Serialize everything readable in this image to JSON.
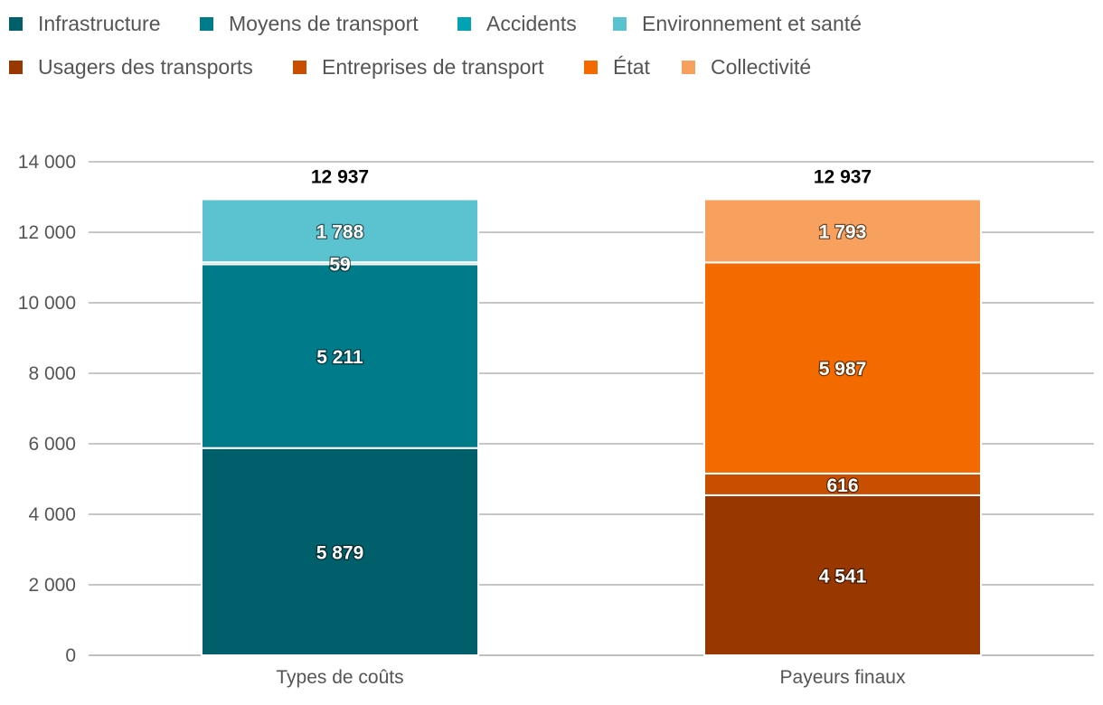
{
  "chart_data": {
    "type": "bar",
    "stacked": true,
    "categories": [
      "Types de coûts",
      "Payeurs finaux"
    ],
    "legend": {
      "placement": "top-left",
      "items": [
        {
          "name": "Infrastructure",
          "color": "#005f6b"
        },
        {
          "name": "Moyens de transport",
          "color": "#007b8a"
        },
        {
          "name": "Accidents",
          "color": "#00a3b4"
        },
        {
          "name": "Environnement et santé",
          "color": "#5bc2cf"
        },
        {
          "name": "Usagers des transports",
          "color": "#983800"
        },
        {
          "name": "Entreprises de transport",
          "color": "#c84f00"
        },
        {
          "name": "État",
          "color": "#f36a00"
        },
        {
          "name": "Collectivité",
          "color": "#f8a15e"
        }
      ]
    },
    "bars": [
      {
        "category": "Types de coûts",
        "total": "12 937",
        "segments": [
          {
            "name": "Infrastructure",
            "value": 5879,
            "label": "5 879",
            "color": "#005f6b"
          },
          {
            "name": "Moyens de transport",
            "value": 5211,
            "label": "5 211",
            "color": "#007b8a"
          },
          {
            "name": "Accidents",
            "value": 59,
            "label": "59",
            "color": "#00a3b4"
          },
          {
            "name": "Environnement et santé",
            "value": 1788,
            "label": "1 788",
            "color": "#5bc2cf"
          }
        ]
      },
      {
        "category": "Payeurs finaux",
        "total": "12 937",
        "segments": [
          {
            "name": "Usagers des transports",
            "value": 4541,
            "label": "4 541",
            "color": "#983800"
          },
          {
            "name": "Entreprises de transport",
            "value": 616,
            "label": "616",
            "color": "#c84f00"
          },
          {
            "name": "État",
            "value": 5987,
            "label": "5 987",
            "color": "#f36a00"
          },
          {
            "name": "Collectivité",
            "value": 1793,
            "label": "1 793",
            "color": "#f8a15e"
          }
        ]
      }
    ],
    "ylim": [
      0,
      14000
    ],
    "yticks": [
      {
        "value": 0,
        "label": "0"
      },
      {
        "value": 2000,
        "label": "2 000"
      },
      {
        "value": 4000,
        "label": "4 000"
      },
      {
        "value": 6000,
        "label": "6 000"
      },
      {
        "value": 8000,
        "label": "8 000"
      },
      {
        "value": 10000,
        "label": "10 000"
      },
      {
        "value": 12000,
        "label": "12 000"
      },
      {
        "value": 14000,
        "label": "14 000"
      }
    ],
    "grid": true,
    "title": "",
    "xlabel": "",
    "ylabel": ""
  }
}
